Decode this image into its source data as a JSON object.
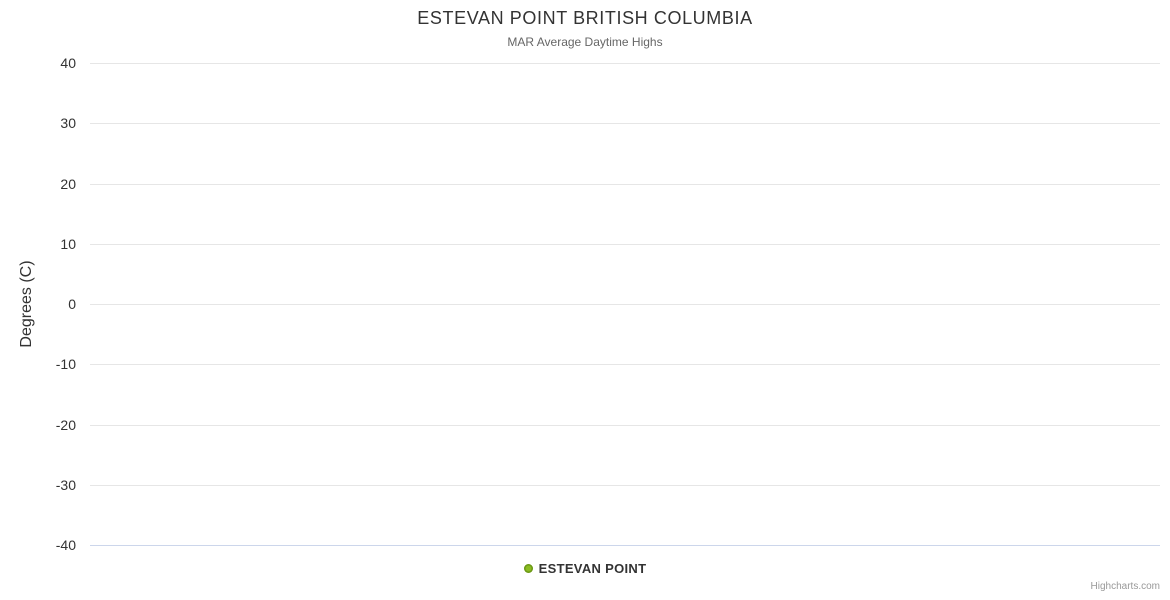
{
  "colors": {
    "title_text": "#333333",
    "subtitle_text": "#666666",
    "label_text": "#333333",
    "legend_text": "#333333",
    "credits_text": "#999999",
    "grid": "#e6e6e6",
    "axis_line": "#ccd6eb",
    "series": "#8bbc21"
  },
  "credits_label": "Highcharts.com",
  "chart_data": {
    "type": "line",
    "title": "ESTEVAN POINT BRITISH COLUMBIA",
    "subtitle": "MAR Average Daytime Highs",
    "xlabel": "",
    "ylabel": "Degrees (C)",
    "ylim": [
      -40,
      40
    ],
    "yticks": [
      40,
      30,
      20,
      10,
      0,
      -10,
      -20,
      -30,
      -40
    ],
    "grid": true,
    "legend_position": "bottom-center",
    "series": [
      {
        "name": "ESTEVAN POINT",
        "color": "#8bbc21",
        "values": []
      }
    ]
  }
}
